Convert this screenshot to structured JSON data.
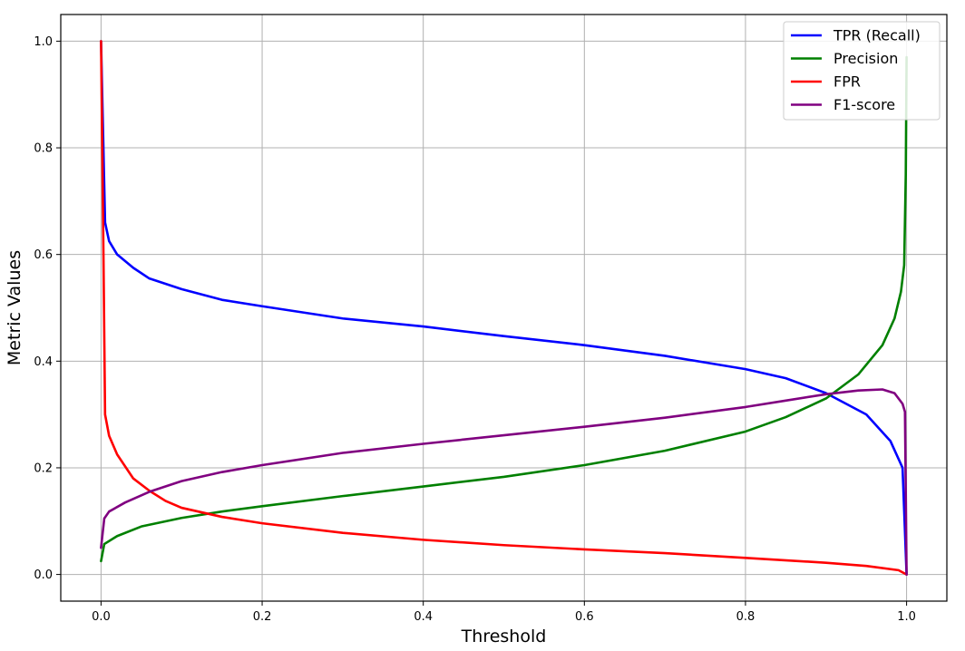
{
  "chart_data": {
    "type": "line",
    "title": "",
    "xlabel": "Threshold",
    "ylabel": "Metric Values",
    "xlim": [
      -0.05,
      1.05
    ],
    "ylim": [
      -0.05,
      1.05
    ],
    "xticks": [
      0.0,
      0.2,
      0.4,
      0.6,
      0.8,
      1.0
    ],
    "yticks": [
      0.0,
      0.2,
      0.4,
      0.6,
      0.8,
      1.0
    ],
    "xtick_labels": [
      "0.0",
      "0.2",
      "0.4",
      "0.6",
      "0.8",
      "1.0"
    ],
    "ytick_labels": [
      "0.0",
      "0.2",
      "0.4",
      "0.6",
      "0.8",
      "1.0"
    ],
    "grid": true,
    "legend_position": "top-right",
    "series": [
      {
        "name": "TPR (Recall)",
        "color": "#0000ff",
        "points": [
          [
            0.0,
            1.0
          ],
          [
            0.005,
            0.66
          ],
          [
            0.01,
            0.625
          ],
          [
            0.02,
            0.6
          ],
          [
            0.04,
            0.575
          ],
          [
            0.06,
            0.555
          ],
          [
            0.1,
            0.535
          ],
          [
            0.15,
            0.515
          ],
          [
            0.2,
            0.503
          ],
          [
            0.3,
            0.48
          ],
          [
            0.4,
            0.465
          ],
          [
            0.5,
            0.447
          ],
          [
            0.6,
            0.43
          ],
          [
            0.7,
            0.41
          ],
          [
            0.8,
            0.385
          ],
          [
            0.85,
            0.368
          ],
          [
            0.9,
            0.34
          ],
          [
            0.95,
            0.3
          ],
          [
            0.98,
            0.25
          ],
          [
            0.995,
            0.2
          ],
          [
            1.0,
            0.0
          ]
        ]
      },
      {
        "name": "Precision",
        "color": "#008000",
        "points": [
          [
            0.0,
            0.025
          ],
          [
            0.004,
            0.057
          ],
          [
            0.02,
            0.072
          ],
          [
            0.05,
            0.09
          ],
          [
            0.1,
            0.106
          ],
          [
            0.15,
            0.118
          ],
          [
            0.2,
            0.128
          ],
          [
            0.3,
            0.147
          ],
          [
            0.4,
            0.165
          ],
          [
            0.5,
            0.183
          ],
          [
            0.6,
            0.205
          ],
          [
            0.7,
            0.232
          ],
          [
            0.8,
            0.268
          ],
          [
            0.85,
            0.295
          ],
          [
            0.9,
            0.33
          ],
          [
            0.94,
            0.375
          ],
          [
            0.97,
            0.43
          ],
          [
            0.985,
            0.48
          ],
          [
            0.993,
            0.53
          ],
          [
            0.997,
            0.58
          ],
          [
            0.999,
            0.75
          ],
          [
            1.0,
            0.97
          ]
        ]
      },
      {
        "name": "FPR",
        "color": "#ff0000",
        "points": [
          [
            0.0,
            1.0
          ],
          [
            0.003,
            0.6
          ],
          [
            0.005,
            0.3
          ],
          [
            0.01,
            0.26
          ],
          [
            0.02,
            0.225
          ],
          [
            0.04,
            0.18
          ],
          [
            0.06,
            0.157
          ],
          [
            0.08,
            0.138
          ],
          [
            0.1,
            0.125
          ],
          [
            0.15,
            0.108
          ],
          [
            0.2,
            0.096
          ],
          [
            0.3,
            0.078
          ],
          [
            0.4,
            0.065
          ],
          [
            0.5,
            0.055
          ],
          [
            0.6,
            0.047
          ],
          [
            0.7,
            0.04
          ],
          [
            0.8,
            0.031
          ],
          [
            0.9,
            0.022
          ],
          [
            0.95,
            0.016
          ],
          [
            0.99,
            0.008
          ],
          [
            1.0,
            0.0
          ]
        ]
      },
      {
        "name": "F1-score",
        "color": "#800080",
        "points": [
          [
            0.0,
            0.05
          ],
          [
            0.004,
            0.105
          ],
          [
            0.01,
            0.118
          ],
          [
            0.03,
            0.135
          ],
          [
            0.06,
            0.155
          ],
          [
            0.1,
            0.175
          ],
          [
            0.15,
            0.192
          ],
          [
            0.2,
            0.205
          ],
          [
            0.3,
            0.228
          ],
          [
            0.4,
            0.245
          ],
          [
            0.5,
            0.261
          ],
          [
            0.6,
            0.277
          ],
          [
            0.7,
            0.294
          ],
          [
            0.8,
            0.314
          ],
          [
            0.85,
            0.326
          ],
          [
            0.9,
            0.338
          ],
          [
            0.94,
            0.345
          ],
          [
            0.97,
            0.347
          ],
          [
            0.985,
            0.34
          ],
          [
            0.995,
            0.32
          ],
          [
            0.998,
            0.305
          ],
          [
            1.0,
            0.0
          ]
        ]
      }
    ]
  }
}
